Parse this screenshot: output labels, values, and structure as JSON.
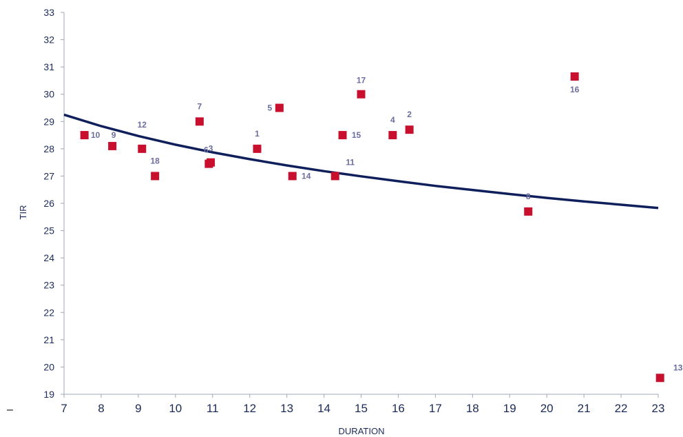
{
  "chart_data": {
    "type": "scatter",
    "xlabel": "DURATION",
    "ylabel": "TIR",
    "xlim": [
      7,
      23
    ],
    "ylim": [
      19,
      33
    ],
    "x_ticks": [
      "7",
      "8",
      "9",
      "10",
      "11",
      "12",
      "13",
      "14",
      "15",
      "16",
      "17",
      "18",
      "19",
      "20",
      "21",
      "22",
      "23"
    ],
    "y_ticks": [
      "19",
      "20",
      "21",
      "22",
      "23",
      "24",
      "25",
      "26",
      "27",
      "28",
      "29",
      "30",
      "31",
      "32",
      "33"
    ],
    "grid": false,
    "legend": "none",
    "points": [
      {
        "label": "10",
        "x": 7.55,
        "y": 28.5
      },
      {
        "label": "9",
        "x": 8.3,
        "y": 28.1
      },
      {
        "label": "12",
        "x": 9.1,
        "y": 28.0
      },
      {
        "label": "18",
        "x": 9.45,
        "y": 27.0
      },
      {
        "label": "7",
        "x": 10.65,
        "y": 29.0
      },
      {
        "label": "6",
        "x": 10.9,
        "y": 27.45
      },
      {
        "label": "3",
        "x": 10.95,
        "y": 27.5
      },
      {
        "label": "1",
        "x": 12.2,
        "y": 28.0
      },
      {
        "label": "5",
        "x": 12.8,
        "y": 29.5
      },
      {
        "label": "14",
        "x": 13.15,
        "y": 27.0
      },
      {
        "label": "11",
        "x": 14.3,
        "y": 27.0
      },
      {
        "label": "15",
        "x": 14.5,
        "y": 28.5
      },
      {
        "label": "17",
        "x": 15.0,
        "y": 30.0
      },
      {
        "label": "4",
        "x": 15.85,
        "y": 28.5
      },
      {
        "label": "2",
        "x": 16.3,
        "y": 28.7
      },
      {
        "label": "8",
        "x": 19.5,
        "y": 25.7
      },
      {
        "label": "16",
        "x": 20.75,
        "y": 30.65
      },
      {
        "label": "13",
        "x": 23.05,
        "y": 19.6
      }
    ],
    "trendline": {
      "type": "power",
      "x": [
        7,
        8,
        9,
        10,
        11,
        12,
        13,
        14,
        15,
        16,
        17,
        18,
        19,
        20,
        21,
        22,
        23
      ],
      "y": [
        29.25,
        28.83,
        28.47,
        28.15,
        27.87,
        27.62,
        27.39,
        27.18,
        26.99,
        26.81,
        26.64,
        26.49,
        26.34,
        26.2,
        26.07,
        25.95,
        25.83
      ]
    },
    "colors": {
      "marker": "#c8102e",
      "trendline": "#0f1f5c",
      "axis": "#a0a4b8",
      "tick_text": "#1b2a5a",
      "point_label": "#6b6e9e"
    }
  },
  "stray_mark": "–"
}
